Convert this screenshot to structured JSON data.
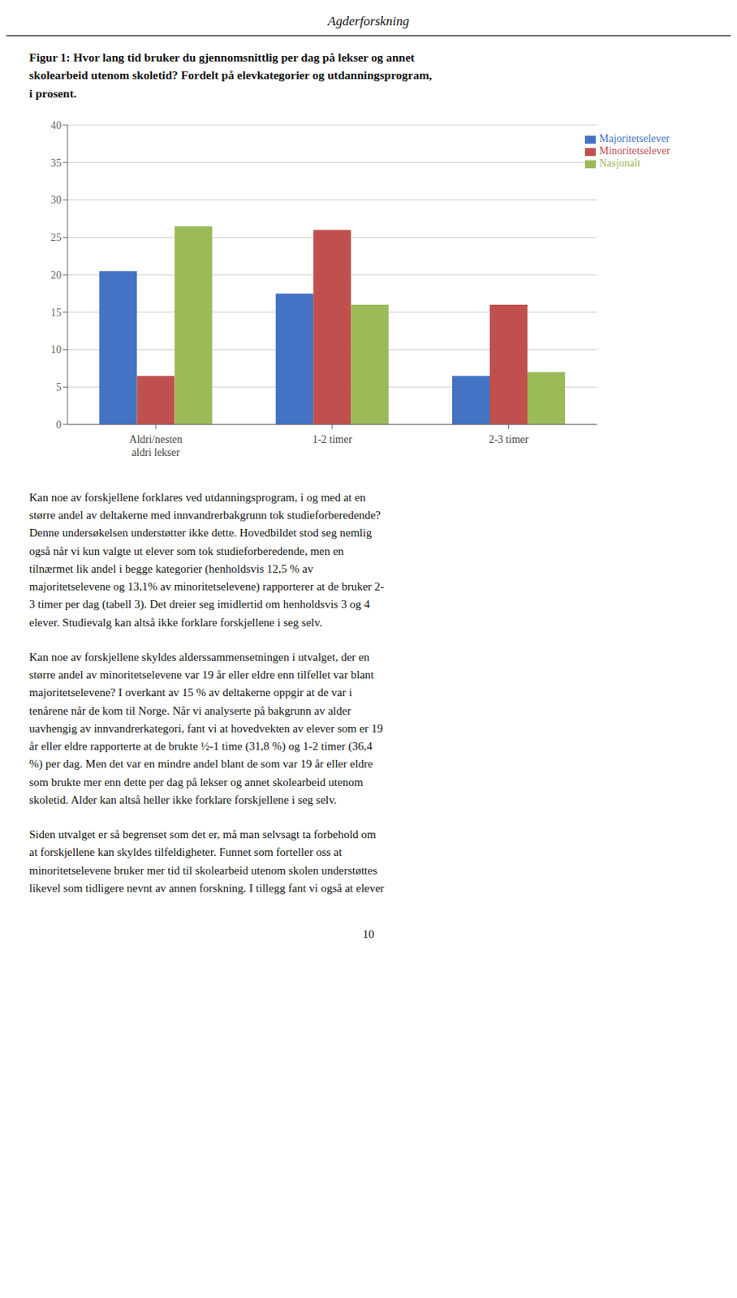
{
  "header": "Agderforskning",
  "chart_data": {
    "type": "bar",
    "title": "Figur 1: Hvor lang tid bruker du gjennomsnittlig per dag på lekser og annet\nskolearbeid utenom skoletid? Fordelt på elevkategorier og utdanningsprogram,\ni prosent.",
    "categories": [
      "Aldri/nesten\naldri lekser",
      "1-2 timer",
      "2-3 timer"
    ],
    "series": [
      {
        "name": "Majoritetselever",
        "color": "#4472C4",
        "values": [
          20.5,
          17.5,
          6.5
        ]
      },
      {
        "name": "Minoritetselever",
        "color": "#C0504D",
        "values": [
          6.5,
          26.0,
          16.0
        ]
      },
      {
        "name": "Nasjonalt",
        "color": "#9BBB59",
        "values": [
          26.5,
          16.0,
          7.0
        ]
      }
    ],
    "ylim": [
      0,
      40
    ],
    "yticks": [
      0,
      5,
      10,
      15,
      20,
      25,
      30,
      35,
      40
    ],
    "grid": true,
    "legend": "upper right"
  },
  "paragraphs": [
    "Kan noe av forskjellene forklares ved utdanningsprogram, i og med at en\nstørre andel av deltakerne med innvandrerbakgrunn tok studieforberedende?\nDenne undersøkelsen understøtter ikke dette. Hovedbildet stod seg nemlig\nogså når vi kun valgte ut elever som tok studieforberedende, men en\ntilnærmet lik andel i begge kategorier (henholdsvis 12,5 % av\nmajoritetselevene og 13,1% av minoritetselevene) rapporterer at de bruker 2-\n3 timer per dag (tabell 3). Det dreier seg imidlertid om henholdsvis 3 og 4\nelever. Studievalg kan altså ikke forklare forskjellene i seg selv.",
    "Kan noe av forskjellene skyldes alderssammensetningen i utvalget, der en\nstørre andel av minoritetselevene var 19 år eller eldre enn tilfellet var blant\nmajoritetselevene? I overkant av 15 % av deltakerne oppgir at de var i\ntenårene når de kom til Norge. Når vi analyserte på bakgrunn av alder\nuavhengig av innvandrerkategori, fant vi at hovedvekten av elever som er 19\når eller eldre rapporterte at de brukte ½-1 time (31,8 %) og 1-2 timer (36,4\n%) per dag. Men det var en mindre andel blant de som var 19 år eller eldre\nsom brukte mer enn dette per dag på lekser og annet skolearbeid utenom\nskoletid. Alder kan altså heller ikke forklare forskjellene i seg selv.",
    "Siden utvalget er så begrenset som det er, må man selvsagt ta forbehold om\nat forskjellene kan skyldes tilfeldigheter. Funnet som forteller oss at\nminoritetselevene bruker mer tid til skolearbeid utenom skolen understøttes\nlikevel som tidligere nevnt av annen forskning. I tillegg fant vi også at elever"
  ],
  "page_number": "10"
}
